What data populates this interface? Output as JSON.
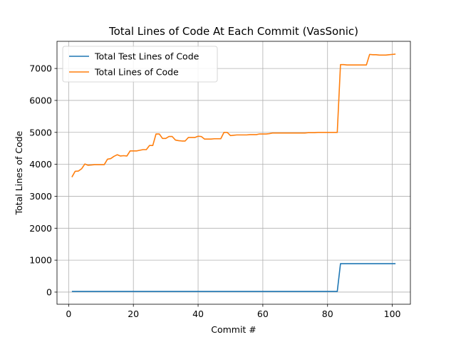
{
  "chart_data": {
    "type": "line",
    "title": "Total Lines of Code At Each Commit (VasSonic)",
    "xlabel": "Commit #",
    "ylabel": "Total Lines of Code",
    "xlim": [
      -3.6,
      105.6
    ],
    "ylim": [
      -380,
      7850
    ],
    "xticks": [
      0,
      20,
      40,
      60,
      80,
      100
    ],
    "yticks": [
      0,
      1000,
      2000,
      3000,
      4000,
      5000,
      6000,
      7000
    ],
    "grid": true,
    "legend_position": "top-left",
    "series": [
      {
        "name": "Total Test Lines of Code",
        "color": "#1f77b4",
        "x": [
          1,
          83,
          84,
          101
        ],
        "y": [
          20,
          20,
          890,
          890
        ]
      },
      {
        "name": "Total Lines of Code",
        "color": "#ff7f0e",
        "x": [
          1,
          2,
          3,
          4,
          5,
          6,
          7,
          8,
          9,
          10,
          11,
          12,
          13,
          14,
          15,
          16,
          17,
          18,
          19,
          20,
          21,
          22,
          23,
          24,
          25,
          26,
          27,
          28,
          29,
          30,
          31,
          32,
          33,
          34,
          35,
          36,
          37,
          38,
          39,
          40,
          41,
          42,
          43,
          44,
          45,
          46,
          47,
          48,
          49,
          50,
          51,
          52,
          53,
          54,
          55,
          56,
          57,
          58,
          59,
          60,
          61,
          62,
          63,
          64,
          65,
          66,
          67,
          68,
          69,
          70,
          71,
          72,
          73,
          74,
          75,
          76,
          77,
          78,
          79,
          80,
          81,
          82,
          83,
          84,
          85,
          86,
          87,
          88,
          89,
          90,
          91,
          92,
          93,
          94,
          95,
          96,
          97,
          98,
          99,
          100,
          101
        ],
        "y": [
          3600,
          3780,
          3790,
          3860,
          4010,
          3970,
          3980,
          3990,
          3990,
          3990,
          3990,
          4160,
          4180,
          4250,
          4300,
          4260,
          4270,
          4260,
          4420,
          4420,
          4420,
          4440,
          4460,
          4460,
          4590,
          4590,
          4950,
          4950,
          4810,
          4810,
          4870,
          4870,
          4760,
          4740,
          4730,
          4730,
          4840,
          4840,
          4840,
          4880,
          4870,
          4790,
          4790,
          4790,
          4800,
          4800,
          4800,
          5000,
          5000,
          4900,
          4910,
          4920,
          4920,
          4920,
          4920,
          4930,
          4930,
          4930,
          4950,
          4950,
          4950,
          4960,
          4980,
          4980,
          4980,
          4980,
          4980,
          4980,
          4980,
          4980,
          4980,
          4980,
          4980,
          4990,
          4990,
          4990,
          5000,
          5000,
          5000,
          5000,
          5000,
          5000,
          5000,
          7120,
          7120,
          7110,
          7110,
          7110,
          7110,
          7110,
          7110,
          7110,
          7440,
          7430,
          7430,
          7420,
          7420,
          7420,
          7430,
          7440,
          7450
        ]
      }
    ]
  }
}
